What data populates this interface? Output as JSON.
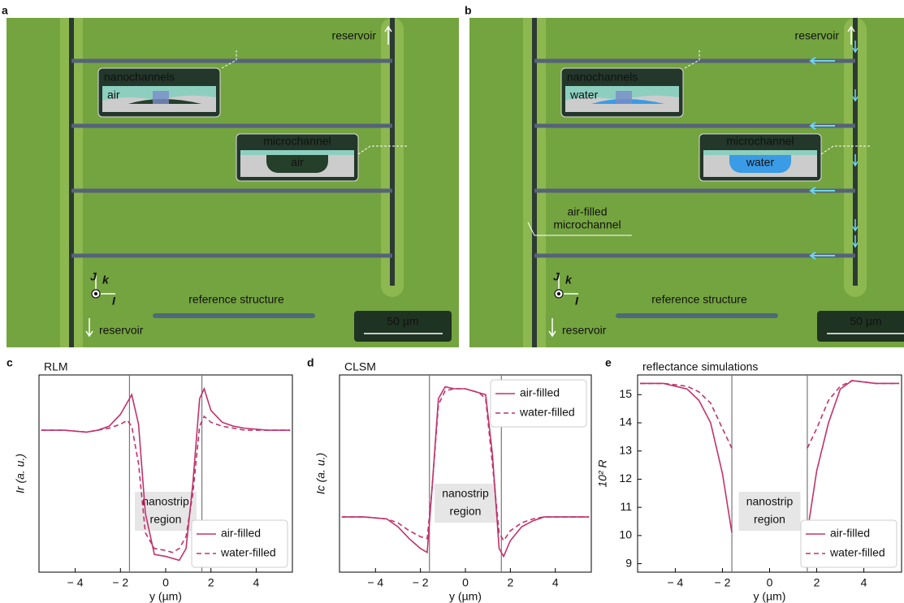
{
  "micrographs": [
    {
      "label": "a",
      "reservoir_top": "reservoir",
      "reservoir_bottom": "reservoir",
      "inset1_title": "nanochannels",
      "inset1_fluid": "air",
      "inset2_title": "microchannel",
      "inset2_fluid": "air",
      "reference": "reference structure",
      "scale": "50 µm",
      "axis_j": "J",
      "axis_k": "k",
      "axis_i": "I"
    },
    {
      "label": "b",
      "reservoir_top": "reservoir",
      "reservoir_bottom": "reservoir",
      "inset1_title": "nanochannels",
      "inset1_fluid": "water",
      "inset2_title": "microchannel",
      "inset2_fluid": "water",
      "reference": "reference structure",
      "scale": "50 µm",
      "axis_j": "J",
      "axis_k": "k",
      "axis_i": "I",
      "annotation": [
        "air-filled",
        "microchannel"
      ]
    }
  ],
  "chart_data": [
    {
      "type": "line",
      "panel": "c",
      "title": "RLM",
      "xlabel": "y (µm)",
      "ylabel": "Ir (a. u.)",
      "x": [
        -5.5,
        -4.5,
        -3.5,
        -3,
        -2.5,
        -2,
        -1.7,
        -1.5,
        -1.2,
        -0.9,
        -0.5,
        0,
        0.3,
        0.6,
        0.9,
        1.2,
        1.5,
        1.7,
        2,
        2.5,
        3,
        3.5,
        4.5,
        5.5
      ],
      "series": [
        {
          "name": "air-filled",
          "color": "#c0336b",
          "dash": false,
          "values": [
            0.72,
            0.72,
            0.71,
            0.72,
            0.74,
            0.8,
            0.86,
            0.9,
            0.75,
            0.3,
            0.09,
            0.08,
            0.07,
            0.06,
            0.12,
            0.45,
            0.88,
            0.93,
            0.82,
            0.76,
            0.74,
            0.73,
            0.72,
            0.72
          ]
        },
        {
          "name": "water-filled",
          "color": "#c0336b",
          "dash": true,
          "values": [
            0.72,
            0.72,
            0.71,
            0.72,
            0.73,
            0.75,
            0.77,
            0.74,
            0.55,
            0.2,
            0.12,
            0.11,
            0.1,
            0.12,
            0.18,
            0.4,
            0.74,
            0.79,
            0.76,
            0.74,
            0.73,
            0.72,
            0.72,
            0.72
          ]
        }
      ],
      "xlim": [
        -5.6,
        5.6
      ],
      "ylim": [
        0,
        1
      ],
      "xticks": [
        {
          "value": -4,
          "label": "− 4"
        },
        {
          "value": -2,
          "label": "− 2"
        },
        0,
        2,
        4
      ],
      "region_bounds": [
        -1.6,
        1.6
      ],
      "region_label": [
        "nanostrip",
        "region"
      ],
      "legend": "lower right"
    },
    {
      "type": "line",
      "panel": "d",
      "title": "CLSM",
      "xlabel": "y (µm)",
      "ylabel": "Ic (a. u.)",
      "x": [
        -5.5,
        -4.5,
        -3.5,
        -3,
        -2.5,
        -2,
        -1.7,
        -1.5,
        -1.2,
        -0.9,
        -0.5,
        0,
        0.3,
        0.6,
        0.9,
        1.2,
        1.5,
        1.7,
        2,
        2.5,
        3,
        3.5,
        4.5,
        5.5
      ],
      "series": [
        {
          "name": "air-filled",
          "color": "#c0336b",
          "dash": false,
          "values": [
            0.28,
            0.28,
            0.27,
            0.23,
            0.17,
            0.12,
            0.1,
            0.4,
            0.88,
            0.94,
            0.93,
            0.93,
            0.92,
            0.91,
            0.9,
            0.6,
            0.12,
            0.08,
            0.16,
            0.23,
            0.26,
            0.28,
            0.28,
            0.28
          ]
        },
        {
          "name": "water-filled",
          "color": "#c0336b",
          "dash": true,
          "values": [
            0.28,
            0.28,
            0.27,
            0.25,
            0.21,
            0.18,
            0.17,
            0.4,
            0.85,
            0.92,
            0.93,
            0.93,
            0.92,
            0.91,
            0.88,
            0.55,
            0.2,
            0.16,
            0.21,
            0.25,
            0.27,
            0.28,
            0.28,
            0.28
          ]
        }
      ],
      "xlim": [
        -5.6,
        5.6
      ],
      "ylim": [
        0,
        1
      ],
      "xticks": [
        {
          "value": -4,
          "label": "− 4"
        },
        {
          "value": -2,
          "label": "− 2"
        },
        0,
        2,
        4
      ],
      "region_bounds": [
        -1.6,
        1.6
      ],
      "region_label": [
        "nanostrip",
        "region"
      ],
      "legend": "upper right"
    },
    {
      "type": "line",
      "panel": "e",
      "title": "reflectance simulations",
      "xlabel": "y (µm)",
      "ylabel": "10² R",
      "x": [
        -5.5,
        -4.5,
        -3.5,
        -3,
        -2.5,
        -2,
        -1.6,
        0,
        1.6,
        2,
        2.5,
        3,
        3.5,
        4.5,
        5.5
      ],
      "series": [
        {
          "name": "air-filled",
          "color": "#c0336b",
          "dash": false,
          "values": [
            15.4,
            15.4,
            15.2,
            14.8,
            14.0,
            12.2,
            10.1,
            null,
            10.1,
            12.3,
            14.0,
            15.2,
            15.5,
            15.4,
            15.4
          ]
        },
        {
          "name": "water-filled",
          "color": "#c0336b",
          "dash": true,
          "values": [
            15.4,
            15.4,
            15.3,
            15.1,
            14.7,
            13.8,
            13.1,
            null,
            13.1,
            13.8,
            14.8,
            15.3,
            15.5,
            15.4,
            15.4
          ]
        }
      ],
      "xlim": [
        -5.6,
        5.6
      ],
      "ylim": [
        8.7,
        15.7
      ],
      "xticks": [
        {
          "value": -4,
          "label": "− 4"
        },
        {
          "value": -2,
          "label": "− 2"
        },
        0,
        2,
        4
      ],
      "yticks": [
        9,
        10,
        11,
        12,
        13,
        14,
        15
      ],
      "region_bounds": [
        -1.6,
        1.6
      ],
      "region_label": [
        "nanostrip",
        "region"
      ],
      "legend": "lower right"
    }
  ]
}
